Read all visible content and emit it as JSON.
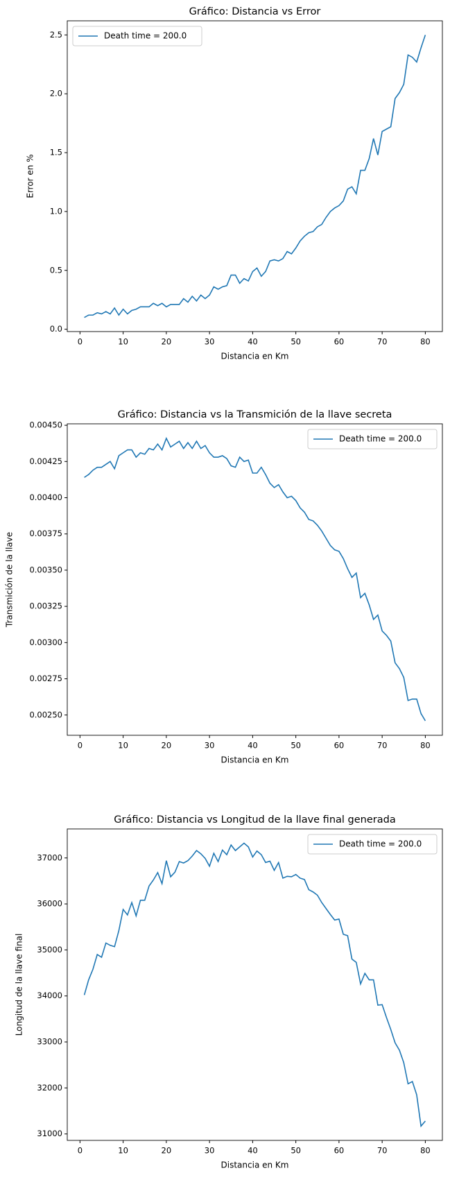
{
  "chart_data": [
    {
      "type": "line",
      "title": "Gráfico: Distancia vs Error",
      "xlabel": "Distancia en Km",
      "ylabel": "Error en %",
      "legend": "upper left",
      "x": [
        1,
        2,
        3,
        4,
        5,
        6,
        7,
        8,
        9,
        10,
        11,
        12,
        13,
        14,
        15,
        16,
        17,
        18,
        19,
        20,
        21,
        22,
        23,
        24,
        25,
        26,
        27,
        28,
        29,
        30,
        31,
        32,
        33,
        34,
        35,
        36,
        37,
        38,
        39,
        40,
        41,
        42,
        43,
        44,
        45,
        46,
        47,
        48,
        49,
        50,
        51,
        52,
        53,
        54,
        55,
        56,
        57,
        58,
        59,
        60,
        61,
        62,
        63,
        64,
        65,
        66,
        67,
        68,
        69,
        70,
        71,
        72,
        73,
        74,
        75,
        76,
        77,
        78,
        79,
        80
      ],
      "series": [
        {
          "name": "Death time = 200.0",
          "color": "#1f77b4",
          "values": [
            0.1,
            0.12,
            0.12,
            0.14,
            0.13,
            0.15,
            0.13,
            0.18,
            0.12,
            0.17,
            0.13,
            0.16,
            0.17,
            0.19,
            0.19,
            0.19,
            0.22,
            0.2,
            0.22,
            0.19,
            0.21,
            0.21,
            0.21,
            0.26,
            0.23,
            0.28,
            0.24,
            0.29,
            0.26,
            0.29,
            0.36,
            0.34,
            0.36,
            0.37,
            0.46,
            0.46,
            0.39,
            0.43,
            0.41,
            0.49,
            0.52,
            0.45,
            0.49,
            0.58,
            0.59,
            0.58,
            0.6,
            0.66,
            0.64,
            0.69,
            0.75,
            0.79,
            0.82,
            0.83,
            0.87,
            0.89,
            0.95,
            1.0,
            1.03,
            1.05,
            1.09,
            1.19,
            1.21,
            1.15,
            1.35,
            1.35,
            1.45,
            1.62,
            1.48,
            1.68,
            1.7,
            1.72,
            1.96,
            2.01,
            2.08,
            2.33,
            2.31,
            2.27,
            2.39,
            2.5
          ]
        }
      ],
      "xlim": [
        -2.95,
        83.95
      ],
      "xticks": [
        0,
        10,
        20,
        30,
        40,
        50,
        60,
        70,
        80
      ],
      "ylim": [
        -0.02,
        2.62
      ],
      "yticks": [
        {
          "value": 0,
          "label": "0.0"
        },
        0.5,
        {
          "value": 1,
          "label": "1.0"
        },
        1.5,
        {
          "value": 2,
          "label": "2.0"
        },
        2.5
      ]
    },
    {
      "type": "line",
      "title": "Gráfico: Distancia vs la Transmición de la llave secreta",
      "xlabel": "Distancia en Km",
      "ylabel": "Transmición de la llave",
      "legend": "upper right",
      "x": [
        1,
        2,
        3,
        4,
        5,
        6,
        7,
        8,
        9,
        10,
        11,
        12,
        13,
        14,
        15,
        16,
        17,
        18,
        19,
        20,
        21,
        22,
        23,
        24,
        25,
        26,
        27,
        28,
        29,
        30,
        31,
        32,
        33,
        34,
        35,
        36,
        37,
        38,
        39,
        40,
        41,
        42,
        43,
        44,
        45,
        46,
        47,
        48,
        49,
        50,
        51,
        52,
        53,
        54,
        55,
        56,
        57,
        58,
        59,
        60,
        61,
        62,
        63,
        64,
        65,
        66,
        67,
        68,
        69,
        70,
        71,
        72,
        73,
        74,
        75,
        76,
        77,
        78,
        79,
        80
      ],
      "series": [
        {
          "name": "Death time = 200.0",
          "color": "#1f77b4",
          "values": [
            0.00414,
            0.00416,
            0.00419,
            0.00421,
            0.00421,
            0.00423,
            0.00425,
            0.0042,
            0.00429,
            0.00431,
            0.00433,
            0.00433,
            0.00428,
            0.00431,
            0.0043,
            0.00434,
            0.00433,
            0.00437,
            0.00433,
            0.00441,
            0.00435,
            0.00437,
            0.00439,
            0.00434,
            0.00438,
            0.00434,
            0.00439,
            0.00434,
            0.00436,
            0.00431,
            0.00428,
            0.00428,
            0.00429,
            0.00427,
            0.00422,
            0.00421,
            0.00428,
            0.00425,
            0.00426,
            0.00417,
            0.00417,
            0.00421,
            0.00416,
            0.0041,
            0.00407,
            0.00409,
            0.00404,
            0.004,
            0.00401,
            0.00398,
            0.00393,
            0.0039,
            0.00385,
            0.00384,
            0.00381,
            0.00377,
            0.00372,
            0.00367,
            0.00364,
            0.00363,
            0.00358,
            0.00351,
            0.00345,
            0.00348,
            0.00331,
            0.00334,
            0.00326,
            0.00316,
            0.00319,
            0.00308,
            0.00305,
            0.00301,
            0.00286,
            0.00282,
            0.00276,
            0.0026,
            0.00261,
            0.00261,
            0.00251,
            0.00246
          ]
        }
      ],
      "xlim": [
        -2.95,
        83.95
      ],
      "xticks": [
        0,
        10,
        20,
        30,
        40,
        50,
        60,
        70,
        80
      ],
      "ylim": [
        0.00236,
        0.00451
      ],
      "yticks": [
        {
          "value": 0.0025,
          "label": "0.00250"
        },
        0.00275,
        {
          "value": 0.003,
          "label": "0.00300"
        },
        0.00325,
        {
          "value": 0.0035,
          "label": "0.00350"
        },
        0.00375,
        {
          "value": 0.004,
          "label": "0.00400"
        },
        0.00425,
        {
          "value": 0.0045,
          "label": "0.00450"
        }
      ]
    },
    {
      "type": "line",
      "title": "Gráfico: Distancia vs Longitud de la llave final generada",
      "xlabel": "Distancia en Km",
      "ylabel": "Longitud de la llave final",
      "legend": "upper right",
      "x": [
        1,
        2,
        3,
        4,
        5,
        6,
        7,
        8,
        9,
        10,
        11,
        12,
        13,
        14,
        15,
        16,
        17,
        18,
        19,
        20,
        21,
        22,
        23,
        24,
        25,
        26,
        27,
        28,
        29,
        30,
        31,
        32,
        33,
        34,
        35,
        36,
        37,
        38,
        39,
        40,
        41,
        42,
        43,
        44,
        45,
        46,
        47,
        48,
        49,
        50,
        51,
        52,
        53,
        54,
        55,
        56,
        57,
        58,
        59,
        60,
        61,
        62,
        63,
        64,
        65,
        66,
        67,
        68,
        69,
        70,
        71,
        72,
        73,
        74,
        75,
        76,
        77,
        78,
        79,
        80
      ],
      "series": [
        {
          "name": "Death time = 200.0",
          "color": "#1f77b4",
          "values": [
            34020,
            34350,
            34580,
            34900,
            34840,
            35150,
            35100,
            35070,
            35420,
            35880,
            35760,
            36030,
            35740,
            36080,
            36080,
            36390,
            36520,
            36680,
            36440,
            36940,
            36590,
            36690,
            36920,
            36890,
            36940,
            37040,
            37160,
            37090,
            36990,
            36820,
            37100,
            36920,
            37170,
            37070,
            37280,
            37160,
            37240,
            37320,
            37240,
            37020,
            37150,
            37070,
            36900,
            36930,
            36730,
            36900,
            36560,
            36600,
            36590,
            36640,
            36560,
            36530,
            36310,
            36260,
            36190,
            36030,
            35900,
            35770,
            35650,
            35670,
            35340,
            35310,
            34800,
            34730,
            34260,
            34490,
            34350,
            34350,
            33800,
            33810,
            33530,
            33270,
            32980,
            32820,
            32550,
            32090,
            32140,
            31850,
            31170,
            31280
          ]
        }
      ],
      "xlim": [
        -2.95,
        83.95
      ],
      "xticks": [
        0,
        10,
        20,
        30,
        40,
        50,
        60,
        70,
        80
      ],
      "ylim": [
        30860,
        37630
      ],
      "yticks": [
        31000,
        32000,
        33000,
        34000,
        35000,
        36000,
        37000
      ]
    }
  ]
}
